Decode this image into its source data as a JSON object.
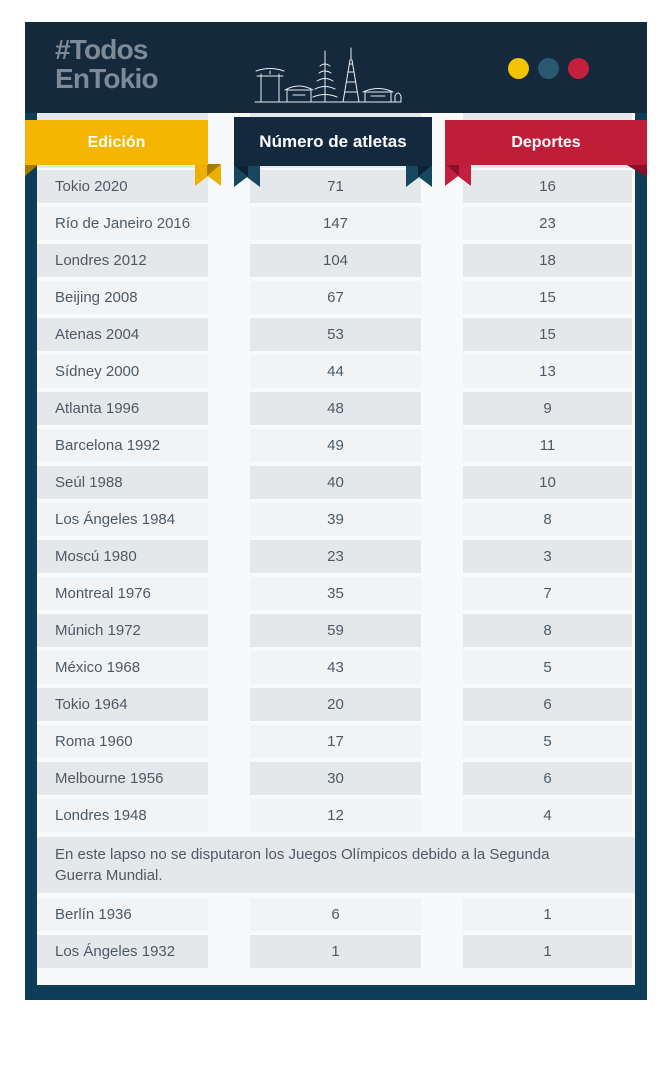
{
  "header": {
    "title_line1": "#Todos",
    "title_line2": "EnTokio",
    "skyline_icon": "tokyo-skyline-icon",
    "dots": [
      {
        "name": "yellow",
        "color": "#f5c400"
      },
      {
        "name": "teal",
        "color": "#2b5871"
      },
      {
        "name": "red",
        "color": "#c41f3d"
      }
    ]
  },
  "columns": [
    {
      "key": "edicion",
      "label": "Edición",
      "color": "#f4b600"
    },
    {
      "key": "atletas",
      "label": "Número de atletas",
      "color": "#132a3e"
    },
    {
      "key": "deportes",
      "label": "Deportes",
      "color": "#c01d39"
    }
  ],
  "rows": [
    {
      "edicion": "Tokio 2020",
      "atletas": "71",
      "deportes": "16"
    },
    {
      "edicion": "Río de Janeiro 2016",
      "atletas": "147",
      "deportes": "23"
    },
    {
      "edicion": "Londres 2012",
      "atletas": "104",
      "deportes": "18"
    },
    {
      "edicion": "Beijing 2008",
      "atletas": "67",
      "deportes": "15"
    },
    {
      "edicion": "Atenas 2004",
      "atletas": "53",
      "deportes": "15"
    },
    {
      "edicion": "Sídney 2000",
      "atletas": "44",
      "deportes": "13"
    },
    {
      "edicion": "Atlanta 1996",
      "atletas": "48",
      "deportes": "9"
    },
    {
      "edicion": "Barcelona 1992",
      "atletas": "49",
      "deportes": "11"
    },
    {
      "edicion": "Seúl 1988",
      "atletas": "40",
      "deportes": "10"
    },
    {
      "edicion": "Los Ángeles 1984",
      "atletas": "39",
      "deportes": "8"
    },
    {
      "edicion": "Moscú 1980",
      "atletas": "23",
      "deportes": "3"
    },
    {
      "edicion": "Montreal 1976",
      "atletas": "35",
      "deportes": "7"
    },
    {
      "edicion": "Múnich 1972",
      "atletas": "59",
      "deportes": "8"
    },
    {
      "edicion": "México 1968",
      "atletas": "43",
      "deportes": "5"
    },
    {
      "edicion": "Tokio 1964",
      "atletas": "20",
      "deportes": "6"
    },
    {
      "edicion": "Roma 1960",
      "atletas": "17",
      "deportes": "5"
    },
    {
      "edicion": "Melbourne 1956",
      "atletas": "30",
      "deportes": "6"
    },
    {
      "edicion": "Londres 1948",
      "atletas": "12",
      "deportes": "4"
    }
  ],
  "note": "En este lapso no se disputaron los Juegos Olímpicos debido a la Segunda Guerra Mundial.",
  "rows_after_note": [
    {
      "edicion": "Berlín 1936",
      "atletas": "6",
      "deportes": "1"
    },
    {
      "edicion": "Los Ángeles 1932",
      "atletas": "1",
      "deportes": "1"
    }
  ],
  "colors": {
    "frame": "#0e3d57",
    "header_bg": "#15293c",
    "title_gray": "#7d8a97",
    "row_gray": "#e5e8ea",
    "row_light": "#f1f3f4",
    "text": "#4d5a66"
  }
}
